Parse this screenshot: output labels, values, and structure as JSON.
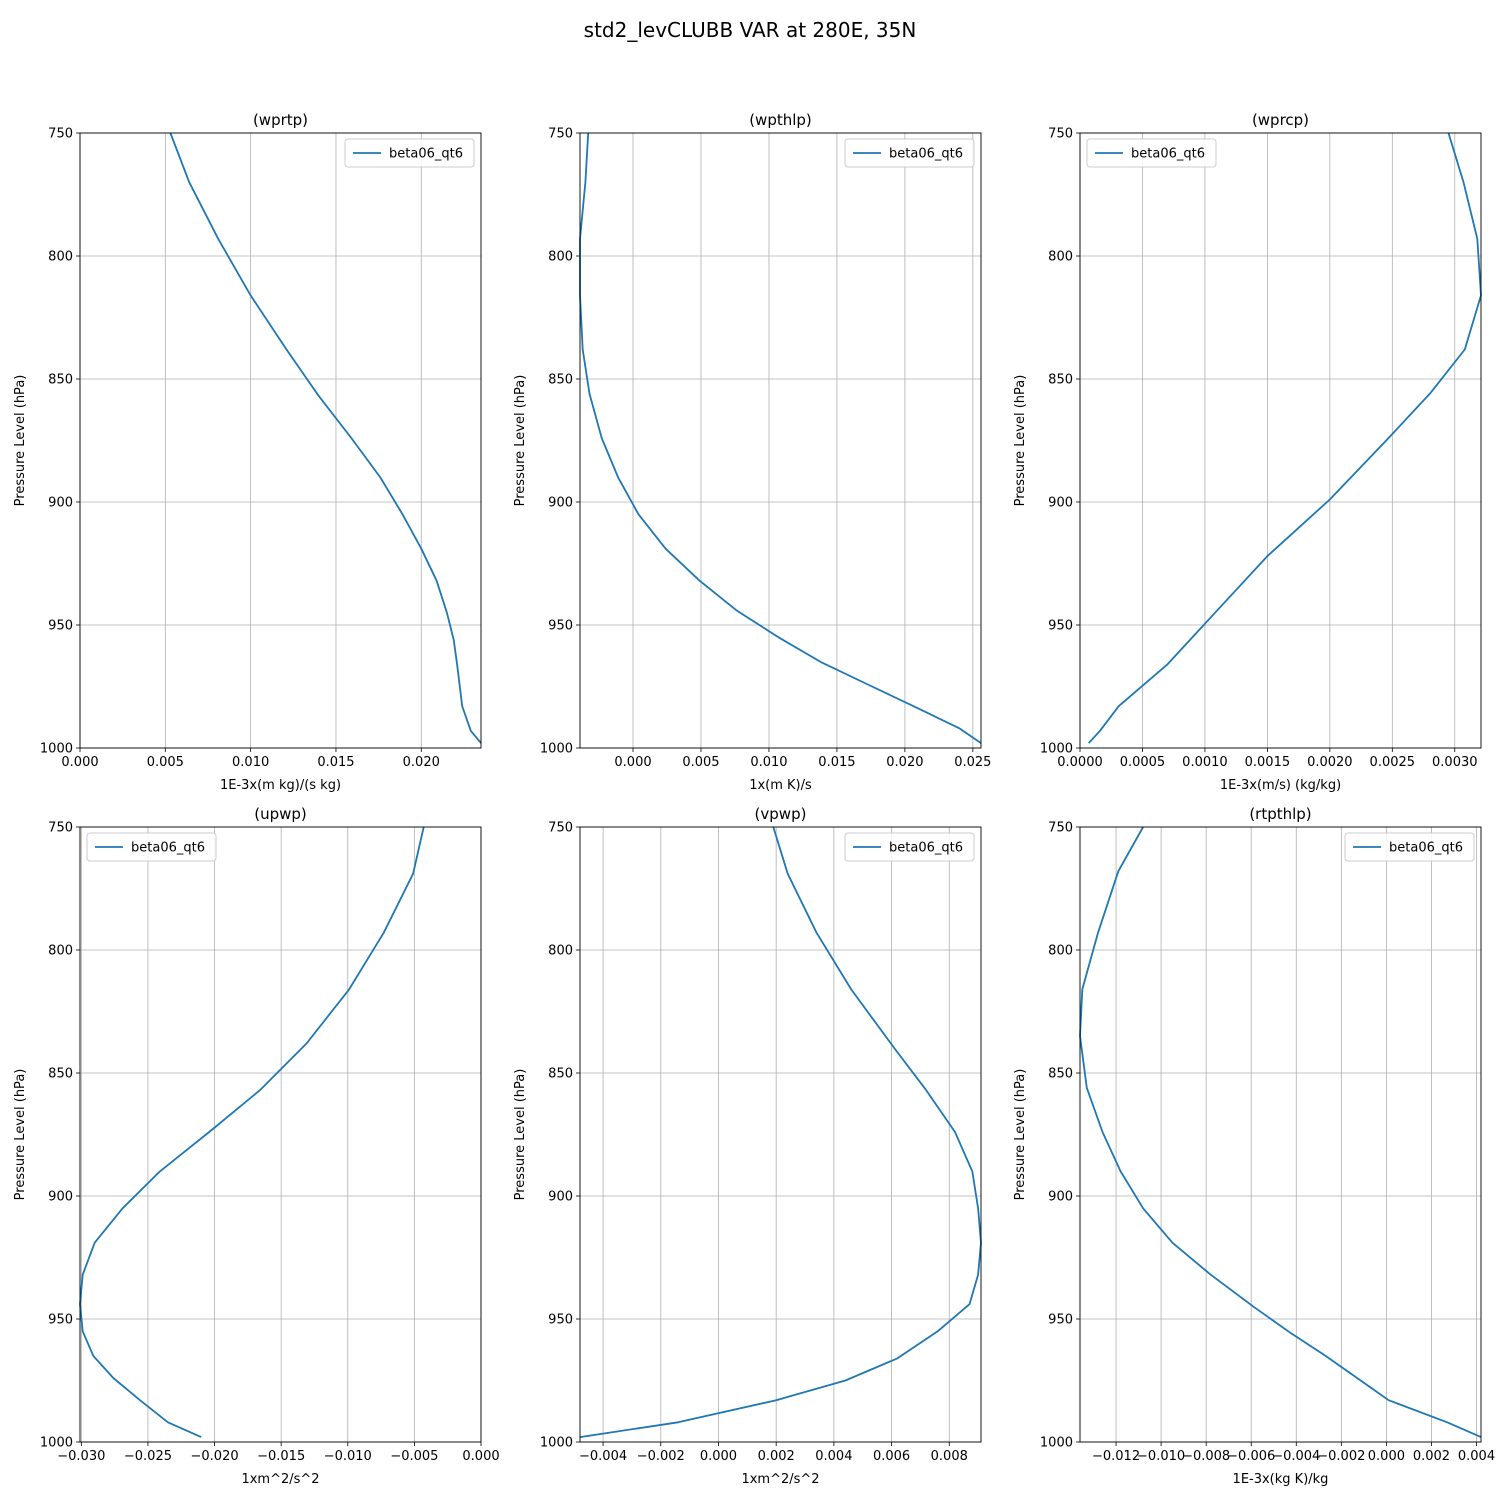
{
  "figure": {
    "title": "std2_levCLUBB VAR at 280E, 35N"
  },
  "chart_data": [
    {
      "type": "line",
      "title": "(wprtp)",
      "xlabel": "1E-3x(m kg)/(s kg)",
      "ylabel": "Pressure Level (hPa)",
      "xlim": [
        0.0,
        0.0235
      ],
      "ylim": [
        1000,
        750
      ],
      "xticks": [
        0.0,
        0.005,
        0.01,
        0.015,
        0.02
      ],
      "xtick_labels": [
        "0.000",
        "0.005",
        "0.010",
        "0.015",
        "0.020"
      ],
      "yticks": [
        750,
        800,
        850,
        900,
        950,
        1000
      ],
      "ytick_labels": [
        "750",
        "800",
        "850",
        "900",
        "950",
        "1000"
      ],
      "grid": true,
      "legend_position": "top-right",
      "series": [
        {
          "name": "beta06_qt6",
          "color": "#1f77b4",
          "x": [
            0.0053,
            0.0064,
            0.0081,
            0.01,
            0.0121,
            0.014,
            0.0159,
            0.0176,
            0.0189,
            0.02,
            0.0209,
            0.0215,
            0.0219,
            0.0221,
            0.0224,
            0.0229,
            0.0235
          ],
          "y": [
            750,
            770,
            793,
            816,
            838,
            857,
            874,
            890,
            905,
            919,
            932,
            945,
            956,
            966,
            983,
            993,
            998
          ]
        }
      ]
    },
    {
      "type": "line",
      "title": "(wpthlp)",
      "xlabel": "1x(m K)/s",
      "ylabel": "Pressure Level (hPa)",
      "xlim": [
        -0.0039,
        0.0256
      ],
      "ylim": [
        1000,
        750
      ],
      "xticks": [
        0.0,
        0.005,
        0.01,
        0.015,
        0.02,
        0.025
      ],
      "xtick_labels": [
        "0.000",
        "0.005",
        "0.010",
        "0.015",
        "0.020",
        "0.025"
      ],
      "yticks": [
        750,
        800,
        850,
        900,
        950,
        1000
      ],
      "ytick_labels": [
        "750",
        "800",
        "850",
        "900",
        "950",
        "1000"
      ],
      "grid": true,
      "legend_position": "top-right",
      "series": [
        {
          "name": "beta06_qt6",
          "color": "#1f77b4",
          "x": [
            -0.0033,
            -0.0035,
            -0.0039,
            -0.0039,
            -0.0037,
            -0.0032,
            -0.0023,
            -0.0011,
            0.0004,
            0.0024,
            0.0049,
            0.0076,
            0.0107,
            0.0138,
            0.0172,
            0.021,
            0.024,
            0.0256
          ],
          "y": [
            750,
            770,
            793,
            816,
            838,
            856,
            874,
            890,
            905,
            919,
            932,
            944,
            955,
            965,
            974,
            984,
            992,
            998
          ]
        }
      ]
    },
    {
      "type": "line",
      "title": "(wprcp)",
      "xlabel": "1E-3x(m/s) (kg/kg)",
      "ylabel": "Pressure Level (hPa)",
      "xlim": [
        0.0,
        0.00321
      ],
      "ylim": [
        1000,
        750
      ],
      "xticks": [
        0.0,
        0.0005,
        0.001,
        0.0015,
        0.002,
        0.0025,
        0.003
      ],
      "xtick_labels": [
        "0.0000",
        "0.0005",
        "0.0010",
        "0.0015",
        "0.0020",
        "0.0025",
        "0.0030"
      ],
      "yticks": [
        750,
        800,
        850,
        900,
        950,
        1000
      ],
      "ytick_labels": [
        "750",
        "800",
        "850",
        "900",
        "950",
        "1000"
      ],
      "grid": true,
      "legend_position": "top-left",
      "series": [
        {
          "name": "beta06_qt6",
          "color": "#1f77b4",
          "x": [
            0.00295,
            0.00307,
            0.00318,
            0.00321,
            0.00308,
            0.0028,
            0.00247,
            0.002,
            0.0015,
            0.0011,
            0.0007,
            0.00031,
            0.00016,
            7e-05
          ],
          "y": [
            750,
            770,
            793,
            816,
            838,
            856,
            874,
            899,
            922,
            944,
            966,
            983,
            993,
            998
          ]
        }
      ]
    },
    {
      "type": "line",
      "title": "(upwp)",
      "xlabel": "1xm^2/s^2",
      "ylabel": "Pressure Level (hPa)",
      "xlim": [
        -0.0301,
        0.0
      ],
      "ylim": [
        1000,
        750
      ],
      "xticks": [
        -0.03,
        -0.025,
        -0.02,
        -0.015,
        -0.01,
        -0.005,
        0.0
      ],
      "xtick_labels": [
        "−0.030",
        "−0.025",
        "−0.020",
        "−0.015",
        "−0.010",
        "−0.005",
        "0.000"
      ],
      "yticks": [
        750,
        800,
        850,
        900,
        950,
        1000
      ],
      "ytick_labels": [
        "750",
        "800",
        "850",
        "900",
        "950",
        "1000"
      ],
      "grid": true,
      "legend_position": "top-left",
      "series": [
        {
          "name": "beta06_qt6",
          "color": "#1f77b4",
          "x": [
            -0.0043,
            -0.0051,
            -0.0073,
            -0.0099,
            -0.0131,
            -0.0166,
            -0.0204,
            -0.0241,
            -0.0269,
            -0.029,
            -0.0299,
            -0.0301,
            -0.0299,
            -0.0291,
            -0.0276,
            -0.0256,
            -0.0235,
            -0.021
          ],
          "y": [
            750,
            769,
            793,
            816,
            838,
            857,
            874,
            890,
            905,
            919,
            932,
            944,
            955,
            965,
            974,
            983,
            992,
            998
          ]
        }
      ]
    },
    {
      "type": "line",
      "title": "(vpwp)",
      "xlabel": "1xm^2/s^2",
      "ylabel": "Pressure Level (hPa)",
      "xlim": [
        -0.0048,
        0.0091
      ],
      "ylim": [
        1000,
        750
      ],
      "xticks": [
        -0.004,
        -0.002,
        0.0,
        0.002,
        0.004,
        0.006,
        0.008
      ],
      "xtick_labels": [
        "−0.004",
        "−0.002",
        "0.000",
        "0.002",
        "0.004",
        "0.006",
        "0.008"
      ],
      "yticks": [
        750,
        800,
        850,
        900,
        950,
        1000
      ],
      "ytick_labels": [
        "750",
        "800",
        "850",
        "900",
        "950",
        "1000"
      ],
      "grid": true,
      "legend_position": "top-right",
      "series": [
        {
          "name": "beta06_qt6",
          "color": "#1f77b4",
          "x": [
            0.0019,
            0.0024,
            0.0034,
            0.0046,
            0.0061,
            0.0072,
            0.0082,
            0.0088,
            0.009,
            0.0091,
            0.009,
            0.0087,
            0.0076,
            0.0062,
            0.0044,
            0.002,
            -0.0014,
            -0.0048
          ],
          "y": [
            750,
            769,
            793,
            816,
            840,
            857,
            874,
            890,
            905,
            919,
            932,
            944,
            955,
            966,
            975,
            983,
            992,
            998
          ]
        }
      ]
    },
    {
      "type": "line",
      "title": "(rtpthlp)",
      "xlabel": "1E-3x(kg K)/kg",
      "ylabel": "Pressure Level (hPa)",
      "xlim": [
        -0.0136,
        0.0042
      ],
      "ylim": [
        1000,
        750
      ],
      "xticks": [
        -0.012,
        -0.01,
        -0.008,
        -0.006,
        -0.004,
        -0.002,
        0.0,
        0.002,
        0.004
      ],
      "xtick_labels": [
        "−0.012",
        "−0.010",
        "−0.008",
        "−0.006",
        "−0.004",
        "−0.002",
        "0.000",
        "0.002",
        "0.004"
      ],
      "yticks": [
        750,
        800,
        850,
        900,
        950,
        1000
      ],
      "ytick_labels": [
        "750",
        "800",
        "850",
        "900",
        "950",
        "1000"
      ],
      "grid": true,
      "legend_position": "top-right",
      "series": [
        {
          "name": "beta06_qt6",
          "color": "#1f77b4",
          "x": [
            -0.0108,
            -0.0119,
            -0.0128,
            -0.0135,
            -0.0136,
            -0.0133,
            -0.0126,
            -0.0118,
            -0.0108,
            -0.0095,
            -0.0078,
            -0.0059,
            -0.0042,
            -0.0027,
            -0.0013,
            0.0001,
            0.0027,
            0.0042
          ],
          "y": [
            750,
            768,
            793,
            816,
            835,
            856,
            874,
            890,
            905,
            919,
            932,
            945,
            956,
            965,
            974,
            983,
            992,
            998
          ]
        }
      ]
    }
  ]
}
